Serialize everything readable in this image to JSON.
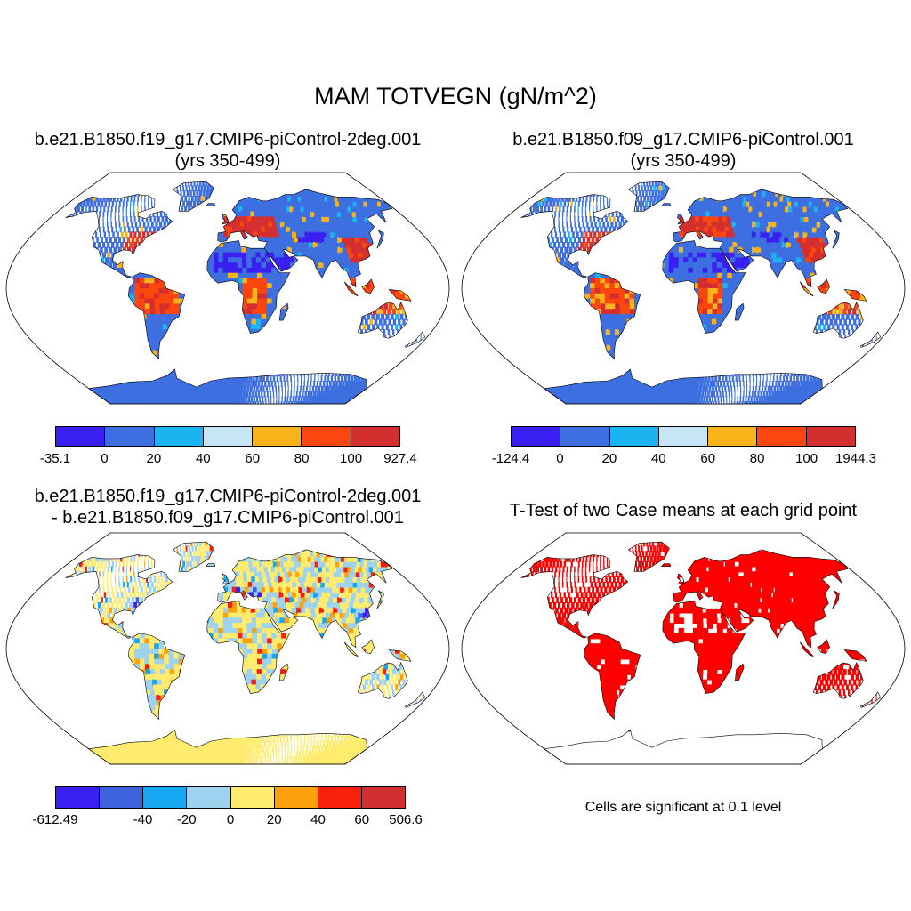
{
  "title": "MAM TOTVEGN (gN/m^2)",
  "panels": {
    "p1": {
      "title_line1": "b.e21.B1850.f19_g17.CMIP6-piControl-2deg.001",
      "title_line2": "(yrs 350-499)",
      "colorbar": {
        "colors": [
          "#3a1ff2",
          "#3d6fe0",
          "#1ab4f0",
          "#c6e6f7",
          "#f8b31a",
          "#fc4610",
          "#d42f2f"
        ],
        "ticks": [
          "-35.1",
          "0",
          "20",
          "40",
          "60",
          "80",
          "100",
          "927.4"
        ]
      }
    },
    "p2": {
      "title_line1": "b.e21.B1850.f09_g17.CMIP6-piControl.001",
      "title_line2": "(yrs 350-499)",
      "colorbar": {
        "colors": [
          "#3a1ff2",
          "#3d6fe0",
          "#1ab4f0",
          "#c6e6f7",
          "#f8b31a",
          "#fc4610",
          "#d42f2f"
        ],
        "ticks": [
          "-124.4",
          "0",
          "20",
          "40",
          "60",
          "80",
          "100",
          "1944.3"
        ]
      }
    },
    "p3": {
      "title_line1": "b.e21.B1850.f19_g17.CMIP6-piControl-2deg.001",
      "title_line2": "- b.e21.B1850.f09_g17.CMIP6-piControl.001",
      "colorbar": {
        "colors": [
          "#3a1ff2",
          "#3f63de",
          "#16a6f2",
          "#9fd2ee",
          "#ffec6e",
          "#fca10c",
          "#f81f0c",
          "#d12f2f"
        ],
        "ticks": [
          "-612.49",
          "",
          "-40",
          "-20",
          "0",
          "20",
          "40",
          "60",
          "506.6"
        ]
      }
    },
    "p4": {
      "title_line1": "T-Test of two Case means at each grid point",
      "note": "Cells are significant at 0.1 level",
      "significant_color": "#ff0000"
    }
  }
}
